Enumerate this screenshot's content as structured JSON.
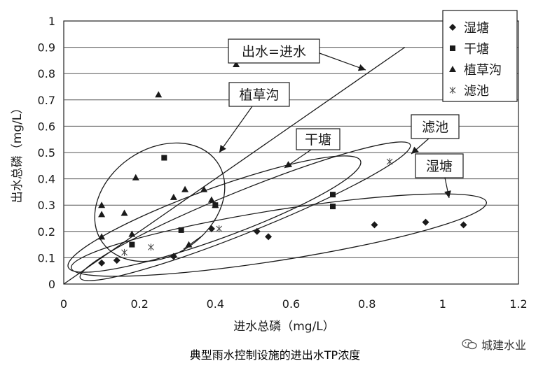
{
  "chart_data": {
    "type": "scatter",
    "xlabel": "进水总磷（mg/L）",
    "ylabel": "出水总磷（mg/L）",
    "xlim": [
      0,
      1.2
    ],
    "ylim": [
      0,
      1
    ],
    "xticks": [
      "0",
      "0.2",
      "0.4",
      "0.6",
      "0.8",
      "1",
      "1.2"
    ],
    "yticks": [
      "0",
      "0.1",
      "0.2",
      "0.3",
      "0.4",
      "0.5",
      "0.6",
      "0.7",
      "0.8",
      "0.9",
      "1"
    ],
    "grid": true,
    "legend_position": "top-right",
    "reference_line": {
      "label": "出水=进水",
      "x": [
        0,
        0.9
      ],
      "y": [
        0,
        0.9
      ]
    },
    "series": [
      {
        "name": "湿塘",
        "marker": "diamond",
        "points": [
          [
            0.1,
            0.08
          ],
          [
            0.14,
            0.09
          ],
          [
            0.29,
            0.105
          ],
          [
            0.39,
            0.21
          ],
          [
            0.51,
            0.2
          ],
          [
            0.54,
            0.18
          ],
          [
            0.82,
            0.225
          ],
          [
            0.955,
            0.235
          ],
          [
            1.055,
            0.225
          ]
        ]
      },
      {
        "name": "干塘",
        "marker": "square",
        "points": [
          [
            0.18,
            0.15
          ],
          [
            0.265,
            0.48
          ],
          [
            0.31,
            0.205
          ],
          [
            0.4,
            0.3
          ],
          [
            0.71,
            0.34
          ],
          [
            0.71,
            0.295
          ]
        ]
      },
      {
        "name": "植草沟",
        "marker": "triangle",
        "points": [
          [
            0.1,
            0.3
          ],
          [
            0.1,
            0.265
          ],
          [
            0.1,
            0.18
          ],
          [
            0.16,
            0.27
          ],
          [
            0.18,
            0.19
          ],
          [
            0.19,
            0.405
          ],
          [
            0.25,
            0.72
          ],
          [
            0.29,
            0.33
          ],
          [
            0.32,
            0.36
          ],
          [
            0.33,
            0.15
          ],
          [
            0.37,
            0.36
          ],
          [
            0.39,
            0.32
          ],
          [
            0.4,
            0.3
          ],
          [
            0.455,
            0.835
          ]
        ]
      },
      {
        "name": "滤池",
        "marker": "star",
        "points": [
          [
            0.16,
            0.12
          ],
          [
            0.23,
            0.14
          ],
          [
            0.41,
            0.21
          ],
          [
            0.86,
            0.465
          ]
        ]
      }
    ],
    "annotations": [
      "出水=进水",
      "植草沟",
      "干塘",
      "滤池",
      "湿塘"
    ]
  },
  "caption": "典型雨水控制设施的进出水TP浓度",
  "watermark": "城建水业",
  "colors": {
    "ink": "#1a1a1a",
    "grid": "#555555",
    "frame": "#222222"
  }
}
